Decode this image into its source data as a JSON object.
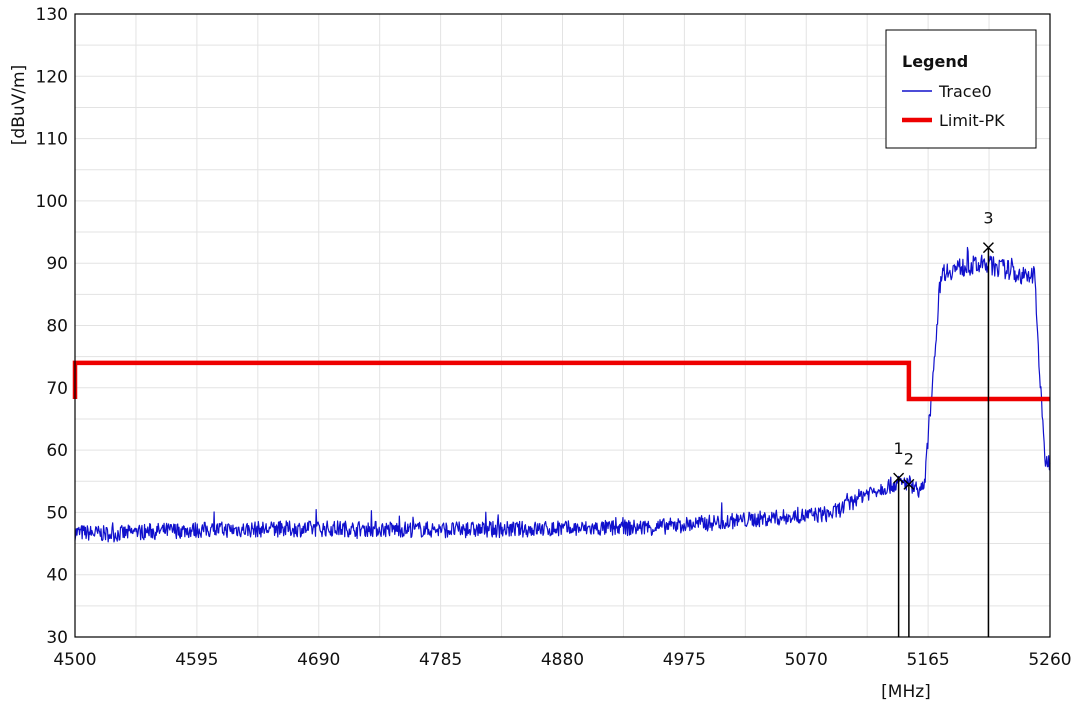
{
  "chart_data": {
    "type": "line",
    "xlabel": "[MHz]",
    "ylabel": "[dBuV/m]",
    "xlim": [
      4500,
      5260
    ],
    "ylim": [
      30,
      130
    ],
    "x_ticks": [
      "4500",
      "4595",
      "4690",
      "4785",
      "4880",
      "4975",
      "5070",
      "5165",
      "5260"
    ],
    "y_ticks": [
      "30",
      "40",
      "50",
      "60",
      "70",
      "80",
      "90",
      "100",
      "110",
      "120",
      "130"
    ],
    "grid": true,
    "legend": {
      "title": "Legend",
      "position": "top-right",
      "entries": [
        "Trace0",
        "Limit-PK"
      ]
    },
    "colors": {
      "trace": "#1010cc",
      "limit": "#ee0000",
      "marker": "#000000"
    },
    "series": [
      {
        "name": "Trace0",
        "x": [
          4500,
          4530,
          4560,
          4600,
          4650,
          4700,
          4750,
          4800,
          4850,
          4900,
          4950,
          4975,
          5000,
          5030,
          5060,
          5090,
          5105,
          5115,
          5130,
          5140,
          5150,
          5155,
          5160,
          5162,
          5175,
          5190,
          5210,
          5230,
          5243,
          5248,
          5252,
          5256,
          5260
        ],
        "y": [
          46.8,
          46.5,
          47.0,
          47.2,
          47.3,
          47.4,
          47.3,
          47.2,
          47.3,
          47.4,
          47.6,
          48.0,
          48.4,
          48.9,
          49.3,
          49.8,
          51.5,
          53.0,
          54.0,
          54.6,
          54.8,
          54.0,
          53.5,
          54.0,
          88.5,
          89.3,
          89.8,
          88.8,
          87.5,
          88.5,
          72.0,
          58.5,
          58.0
        ]
      },
      {
        "name": "Limit-PK",
        "x": [
          4500,
          4500,
          5150,
          5150,
          5260
        ],
        "y": [
          68.2,
          74.0,
          74.0,
          68.2,
          68.2
        ]
      }
    ],
    "markers": [
      {
        "label": "1",
        "x": 5142,
        "y": 55.5
      },
      {
        "label": "2",
        "x": 5150,
        "y": 54.5
      },
      {
        "label": "3",
        "x": 5212,
        "y": 92.5
      }
    ]
  }
}
